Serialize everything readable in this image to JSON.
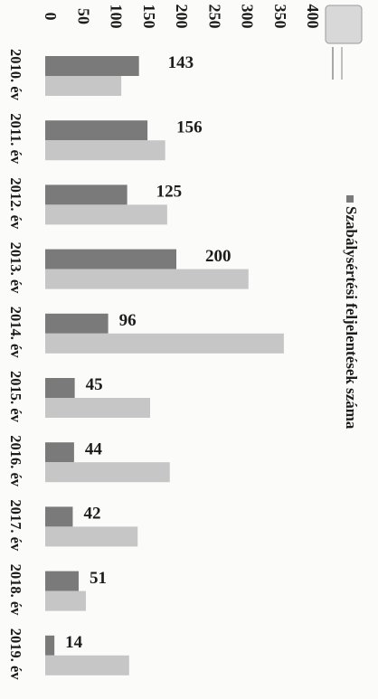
{
  "chart_data": {
    "type": "bar",
    "orientation": "rotated-90",
    "categories": [
      "2010. év",
      "2011. év",
      "2012. év",
      "2013. év",
      "2014. év",
      "2015. év",
      "2016. év",
      "2017. év",
      "2018. év",
      "2019. év"
    ],
    "series": [
      {
        "name": "Szabálysértési feljelentések száma",
        "values": [
          143,
          156,
          125,
          200,
          96,
          45,
          44,
          42,
          51,
          14
        ],
        "color": "#7a7a7a",
        "data_labels": true
      },
      {
        "values": [
          116,
          183,
          186,
          310,
          364,
          160,
          190,
          141,
          62,
          128
        ],
        "color": "#c6c6c6",
        "data_labels": false
      }
    ],
    "ylim": [
      0,
      400
    ],
    "yticks": [
      "0",
      "50",
      "100",
      "150",
      "200",
      "250",
      "300",
      "350",
      "400"
    ],
    "legend_position": "right",
    "grid": false
  },
  "logo_icon": "coat-of-arms-icon"
}
